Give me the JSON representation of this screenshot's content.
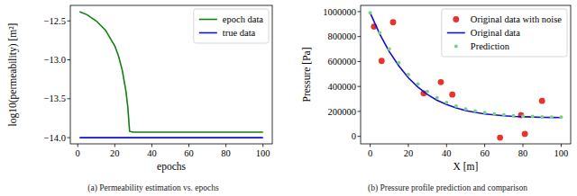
{
  "chart_data": [
    {
      "type": "line",
      "x_label": "epochs",
      "y_label": "log10(permeability) [m²]",
      "caption": "(a) Permeability estimation vs. epochs",
      "xlim": [
        -4,
        105
      ],
      "ylim": [
        -14.08,
        -12.3
      ],
      "xticks": [
        0,
        20,
        40,
        60,
        80,
        100
      ],
      "yticks": [
        {
          "value": -12.5,
          "label": "−12.5"
        },
        {
          "value": -13.0,
          "label": "−13.0"
        },
        {
          "value": -13.5,
          "label": "−13.5"
        },
        {
          "value": -14.0,
          "label": "−14.0"
        }
      ],
      "grid": false,
      "legend": "upper right",
      "series": [
        {
          "name": "epoch data",
          "color": "#108010",
          "type": "line",
          "line_style": "solid",
          "x": [
            1,
            5,
            10,
            15,
            20,
            22,
            24,
            26,
            27,
            28,
            30,
            40,
            60,
            80,
            100
          ],
          "values": [
            -12.38,
            -12.42,
            -12.5,
            -12.62,
            -12.82,
            -12.95,
            -13.13,
            -13.4,
            -13.6,
            -13.92,
            -13.93,
            -13.93,
            -13.93,
            -13.93,
            -13.93
          ]
        },
        {
          "name": "true data",
          "color": "#1010d0",
          "type": "line",
          "line_style": "solid",
          "x": [
            1,
            100
          ],
          "values": [
            -14.0,
            -14.0
          ]
        }
      ]
    },
    {
      "type": "scatter",
      "x_label": "X [m]",
      "y_label": "Pressure [Pa]",
      "caption": "(b) Pressure profile prediction and comparison",
      "xlim": [
        -5,
        105
      ],
      "ylim": [
        -60000,
        1050000
      ],
      "xticks": [
        0,
        20,
        40,
        60,
        80,
        100
      ],
      "yticks": [
        0,
        200000,
        400000,
        600000,
        800000,
        1000000
      ],
      "grid": false,
      "legend": "upper right",
      "series": [
        {
          "name": "Original data with noise",
          "color": "#e8322b",
          "type": "scatter",
          "marker": "circle",
          "x": [
            2,
            6,
            12,
            28,
            37,
            43,
            68,
            79,
            81,
            90
          ],
          "values": [
            880000,
            605000,
            915000,
            345000,
            435000,
            335000,
            -10000,
            170000,
            20000,
            285000
          ]
        },
        {
          "name": "Original data",
          "color": "#1010d0",
          "type": "line",
          "line_style": "solid",
          "x": [
            0,
            5,
            10,
            15,
            20,
            25,
            30,
            35,
            40,
            45,
            50,
            55,
            60,
            65,
            70,
            75,
            80,
            85,
            90,
            95,
            100
          ],
          "values": [
            990000,
            820000,
            680000,
            565000,
            470000,
            395000,
            335000,
            290000,
            255000,
            228000,
            207000,
            192000,
            180000,
            172000,
            165000,
            160000,
            157000,
            155000,
            153000,
            152000,
            151000
          ]
        },
        {
          "name": "Prediction",
          "color": "#7fcf7f",
          "type": "scatter",
          "marker": "circle",
          "x": [
            0,
            5,
            10,
            15,
            20,
            25,
            30,
            35,
            40,
            45,
            50,
            55,
            60,
            65,
            70,
            75,
            80,
            85,
            90,
            95,
            100
          ],
          "values": [
            990000,
            830000,
            700000,
            590000,
            495000,
            420000,
            360000,
            310000,
            272000,
            243000,
            220000,
            203000,
            190000,
            180000,
            172000,
            166000,
            162000,
            159000,
            157000,
            155000,
            154000
          ]
        }
      ]
    }
  ]
}
